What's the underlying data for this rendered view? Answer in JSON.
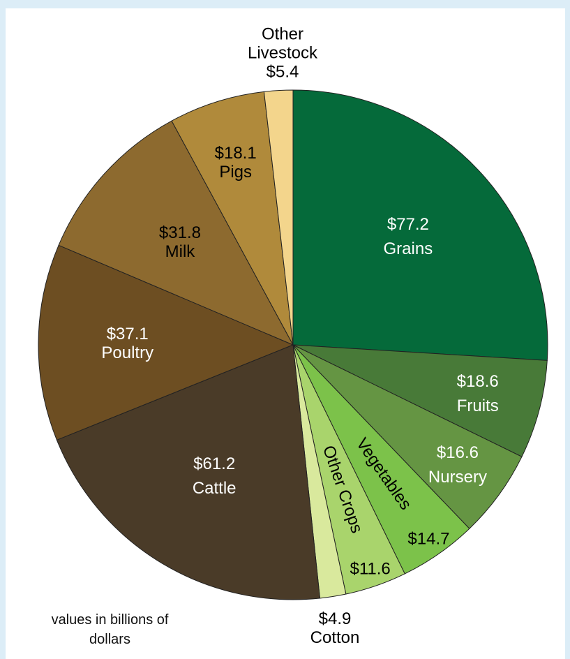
{
  "chart_data": {
    "type": "pie",
    "categories": [
      "Grains",
      "Fruits",
      "Nursery",
      "Vegetables",
      "Other Crops",
      "Cotton",
      "Cattle",
      "Poultry",
      "Milk",
      "Pigs",
      "Other Livestock"
    ],
    "values": [
      77.2,
      18.6,
      16.6,
      14.7,
      11.6,
      4.9,
      61.2,
      37.1,
      31.8,
      18.1,
      5.4
    ],
    "value_labels": [
      "$77.2",
      "$18.6",
      "$16.6",
      "$14.7",
      "$11.6",
      "$4.9",
      "$61.2",
      "$37.1",
      "$31.8",
      "$18.1",
      "$5.4"
    ],
    "colors": [
      "#056a3a",
      "#487a38",
      "#659543",
      "#7cc24a",
      "#a9d46c",
      "#d9e99d",
      "#4a3b28",
      "#6d4e22",
      "#8d6a2f",
      "#b08a3b",
      "#f3d58c"
    ],
    "note": "values in billions of dollars"
  }
}
